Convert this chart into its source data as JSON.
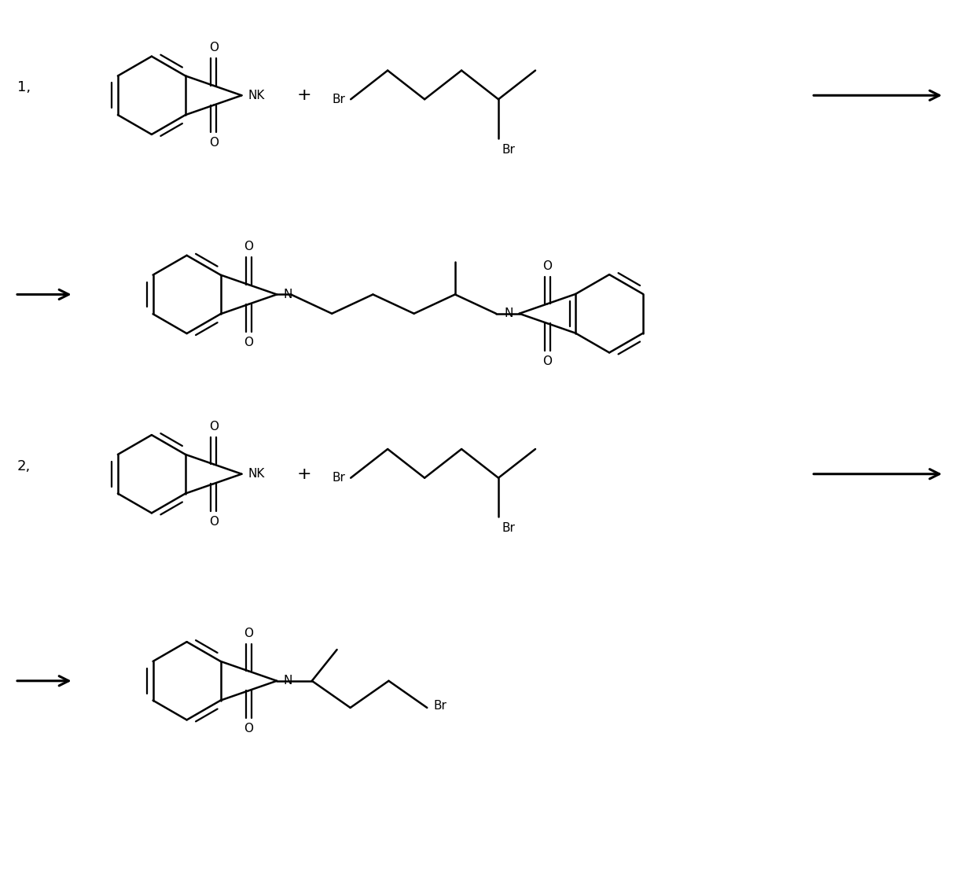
{
  "background_color": "#ffffff",
  "line_color": "#000000",
  "text_color": "#000000",
  "figsize": [
    12.39,
    11.33
  ],
  "dpi": 100,
  "label_1": "1,",
  "label_2": "2,",
  "plus": "+",
  "NK": "NK",
  "Br": "Br",
  "N": "N",
  "O": "O",
  "lw": 1.8,
  "fs": 11
}
